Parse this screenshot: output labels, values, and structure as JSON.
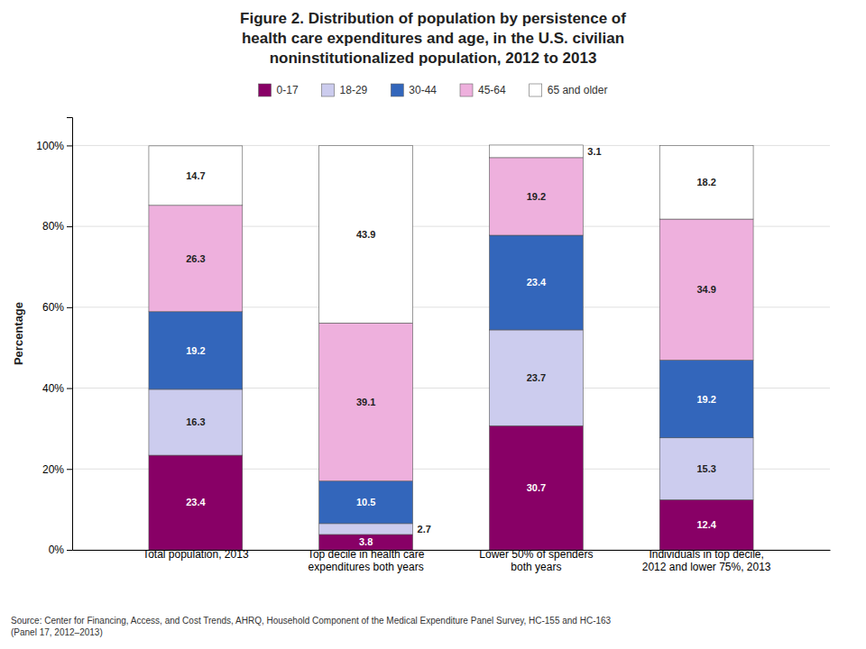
{
  "chart_data": {
    "type": "bar",
    "stacked": true,
    "title": "Figure 2. Distribution of population  by persistence of\nhealth care expenditures and age, in the U.S. civilian\nnoninstitutionalized  population, 2012 to 2013",
    "ylabel": "Percentage",
    "source": "Source: Center for Financing, Access, and Cost Trends, AHRQ, Household Component of the Medical Expenditure Panel Survey,  HC-155 and HC-163\n(Panel 17, 2012–2013)",
    "categories": [
      "Total population, 2013",
      "Top decile in health care\nexpenditures both years",
      "Lower 50% of spenders\nboth years",
      "Individuals in top decile,\n2012 and lower 75%, 2013"
    ],
    "series": [
      {
        "name": "0-17",
        "color": "#880066",
        "values": [
          23.4,
          3.8,
          30.7,
          12.4
        ]
      },
      {
        "name": "18-29",
        "color": "#CCCCEE",
        "values": [
          16.3,
          2.7,
          23.7,
          15.3
        ]
      },
      {
        "name": "30-44",
        "color": "#3366BB",
        "values": [
          19.2,
          10.5,
          23.4,
          19.2
        ]
      },
      {
        "name": "45-64",
        "color": "#EEB0DD",
        "values": [
          26.3,
          39.1,
          19.2,
          34.9
        ]
      },
      {
        "name": "65 and older",
        "color": "#FFFFFF",
        "values": [
          14.7,
          43.9,
          3.1,
          18.2
        ]
      }
    ],
    "ylim": [
      0,
      107
    ],
    "yticks": [
      {
        "value": 0,
        "label": "0%"
      },
      {
        "value": 20,
        "label": "20%"
      },
      {
        "value": 40,
        "label": "40%"
      },
      {
        "value": 60,
        "label": "60%"
      },
      {
        "value": 80,
        "label": "80%"
      },
      {
        "value": 100,
        "label": "100%"
      }
    ],
    "grid": true,
    "legend": "top",
    "data_labels": true
  }
}
